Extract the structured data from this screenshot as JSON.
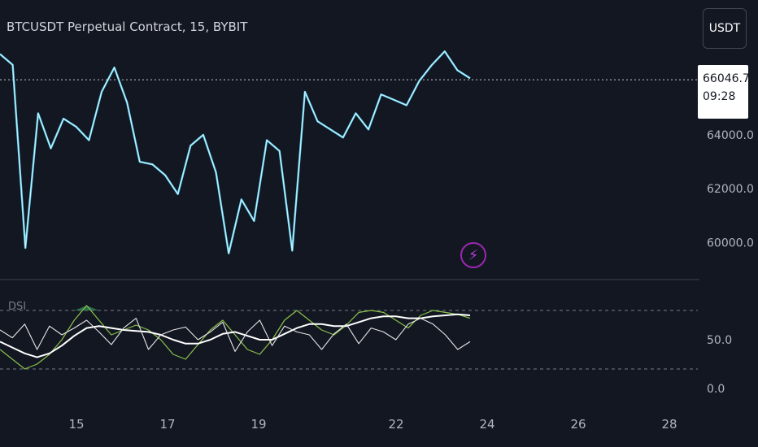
{
  "header": {
    "title": "BTCUSDT Perpetual Contract, 15, BYBIT"
  },
  "toolbar": {
    "currency_button": "USDT"
  },
  "price_tag": {
    "price": "66046.7",
    "countdown": "09:28"
  },
  "indicator": {
    "label": "DSI"
  },
  "colors": {
    "background": "#131722",
    "price_line": "#5fd3f3",
    "price_line_alt": "#ffffff",
    "dsi_line": "#e6e6e6",
    "dsi_signal": "#8bc34a",
    "dsi_fill": "#2e7d4f",
    "grid_dash": "#787b86",
    "accent_purple": "#9c27b0"
  },
  "chart_data": [
    {
      "type": "line",
      "title": "BTCUSDT Perpetual Contract, 15, BYBIT",
      "x_ticks": [
        "15",
        "17",
        "19",
        "22",
        "24",
        "26",
        "28"
      ],
      "y_ticks": [
        "60000.0",
        "62000.0",
        "64000.0"
      ],
      "ylim": [
        59500,
        67800
      ],
      "last_price": 66046.7,
      "series": [
        {
          "values": [
            67000,
            66600,
            59800,
            64800,
            63500,
            64600,
            64300,
            63800,
            65600,
            66500,
            65200,
            63000,
            62900,
            62500,
            61800,
            63600,
            64000,
            62600,
            59600,
            61600,
            60800,
            63800,
            63400,
            59700,
            65600,
            64500,
            64200,
            63900,
            64800,
            64200,
            65500,
            65300,
            65100,
            66000,
            66600,
            67100,
            66400,
            66100
          ]
        }
      ]
    },
    {
      "type": "line",
      "title": "DSI",
      "y_ticks": [
        "50.0",
        "0.0"
      ],
      "ylim": [
        -5,
        105
      ],
      "levels": [
        80,
        20
      ],
      "series": [
        {
          "values": [
            60,
            52,
            66,
            40,
            64,
            55,
            62,
            70,
            58,
            45,
            62,
            72,
            40,
            55,
            60,
            63,
            50,
            58,
            68,
            38,
            58,
            70,
            44,
            64,
            58,
            55,
            40,
            56,
            66,
            46,
            62,
            58,
            50,
            66,
            72,
            66,
            55,
            40,
            48
          ]
        },
        {
          "values": [
            40,
            30,
            20,
            25,
            35,
            50,
            70,
            85,
            70,
            55,
            60,
            65,
            60,
            50,
            35,
            30,
            45,
            60,
            70,
            55,
            40,
            35,
            50,
            70,
            80,
            70,
            60,
            55,
            65,
            78,
            80,
            78,
            70,
            62,
            75,
            80,
            78,
            76,
            72
          ]
        },
        {
          "values": [
            48,
            42,
            36,
            32,
            36,
            44,
            54,
            62,
            64,
            62,
            60,
            59,
            58,
            55,
            50,
            46,
            46,
            50,
            56,
            58,
            54,
            50,
            50,
            56,
            62,
            66,
            66,
            64,
            64,
            68,
            72,
            74,
            74,
            72,
            72,
            74,
            75,
            76,
            75
          ]
        }
      ]
    }
  ]
}
